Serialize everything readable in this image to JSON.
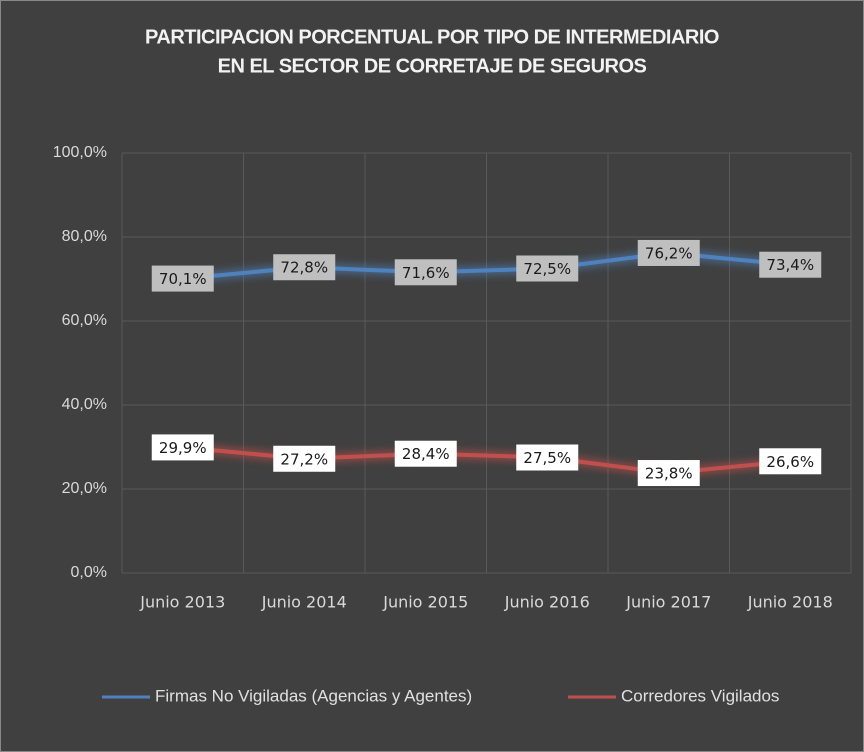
{
  "chart_data": {
    "type": "line",
    "title": [
      "PARTICIPACION PORCENTUAL POR TIPO DE INTERMEDIARIO",
      "EN EL SECTOR DE CORRETAJE DE SEGUROS"
    ],
    "categories": [
      "Junio 2013",
      "Junio 2014",
      "Junio 2015",
      "Junio 2016",
      "Junio 2017",
      "Junio 2018"
    ],
    "series": [
      {
        "name": "Firmas No Vigiladas (Agencias y Agentes)",
        "color": "#4f81bd",
        "values": [
          70.1,
          72.8,
          71.6,
          72.5,
          76.2,
          73.4
        ],
        "value_labels": [
          "70,1%",
          "72,8%",
          "71,6%",
          "72,5%",
          "76,2%",
          "73,4%"
        ]
      },
      {
        "name": "Corredores Vigilados",
        "color": "#c0504d",
        "values": [
          29.9,
          27.2,
          28.4,
          27.5,
          23.8,
          26.6
        ],
        "value_labels": [
          "29,9%",
          "27,2%",
          "28,4%",
          "27,5%",
          "23,8%",
          "26,6%"
        ]
      }
    ],
    "ylim": [
      0,
      100
    ],
    "yticks": [
      {
        "value": 0,
        "label": "0,0%"
      },
      {
        "value": 20,
        "label": "20,0%"
      },
      {
        "value": 40,
        "label": "40,0%"
      },
      {
        "value": 60,
        "label": "60,0%"
      },
      {
        "value": 80,
        "label": "80,0%"
      },
      {
        "value": 100,
        "label": "100,0%"
      }
    ],
    "grid": true,
    "legend": "bottom"
  }
}
